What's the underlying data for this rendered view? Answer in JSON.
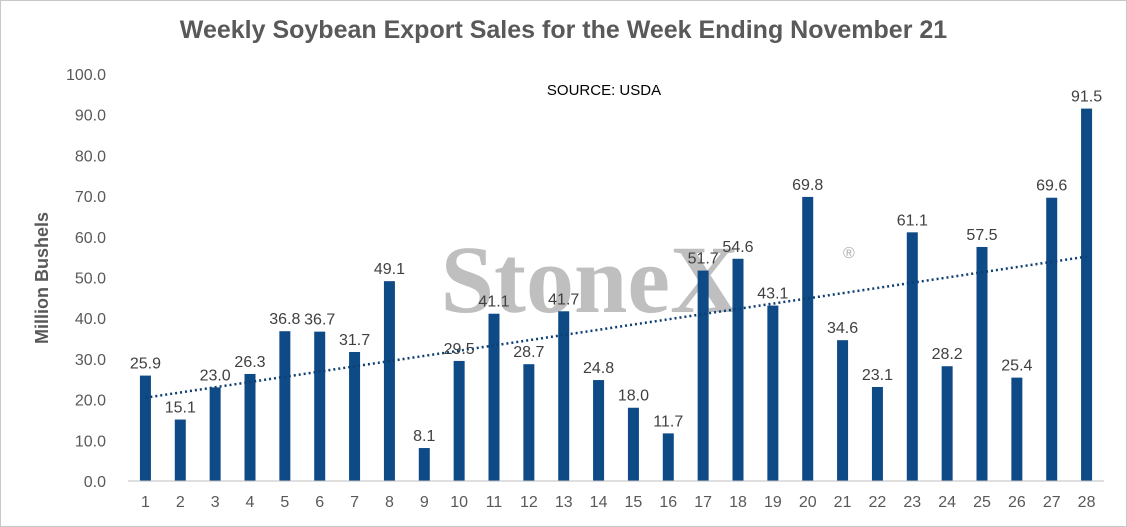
{
  "chart_data": {
    "type": "bar",
    "title": "Weekly Soybean Export Sales for the Week Ending November 21",
    "ylabel": "Million Bushels",
    "xlabel": "",
    "ylim": [
      0,
      100
    ],
    "yticks": [
      "0.0",
      "10.0",
      "20.0",
      "30.0",
      "40.0",
      "50.0",
      "60.0",
      "70.0",
      "80.0",
      "90.0",
      "100.0"
    ],
    "categories": [
      "1",
      "2",
      "3",
      "4",
      "5",
      "6",
      "7",
      "8",
      "9",
      "10",
      "11",
      "12",
      "13",
      "14",
      "15",
      "16",
      "17",
      "18",
      "19",
      "20",
      "21",
      "22",
      "23",
      "24",
      "25",
      "26",
      "27",
      "28"
    ],
    "values": [
      25.9,
      15.1,
      23.0,
      26.3,
      36.8,
      36.7,
      31.7,
      49.1,
      8.1,
      29.5,
      41.1,
      28.7,
      41.7,
      24.8,
      18.0,
      11.7,
      51.7,
      54.6,
      43.1,
      69.8,
      34.6,
      23.1,
      61.1,
      28.2,
      57.5,
      25.4,
      69.6,
      91.5
    ],
    "data_labels": [
      "25.9",
      "15.1",
      "23.0",
      "26.3",
      "36.8",
      "36.7",
      "31.7",
      "49.1",
      "8.1",
      "29.5",
      "41.1",
      "28.7",
      "41.7",
      "24.8",
      "18.0",
      "11.7",
      "51.7",
      "54.6",
      "43.1",
      "69.8",
      "34.6",
      "23.1",
      "61.1",
      "28.2",
      "57.5",
      "25.4",
      "69.6",
      "91.5"
    ],
    "trendline": {
      "type": "linear",
      "style": "dotted",
      "color": "#0d3f73"
    },
    "annotation": "SOURCE: USDA",
    "watermark": "StoneX",
    "watermark_mark": "®",
    "grid": false,
    "legend": "none",
    "bar_color": "#0d4a86"
  }
}
